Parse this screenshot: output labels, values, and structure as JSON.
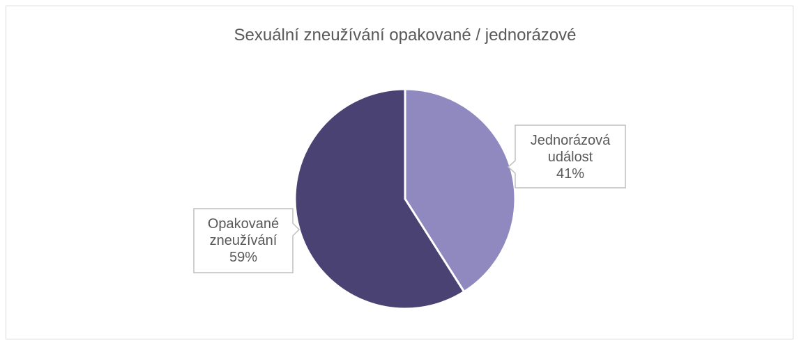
{
  "chart_data": {
    "type": "pie",
    "title": "Sexuální zneužívání opakované / jednorázové",
    "categories": [
      "Jednorázová událost",
      "Opakované zneužívání"
    ],
    "values": [
      41,
      59
    ],
    "value_labels": [
      "41%",
      "59%"
    ],
    "colors": [
      "#9089c0",
      "#4a4272"
    ]
  }
}
